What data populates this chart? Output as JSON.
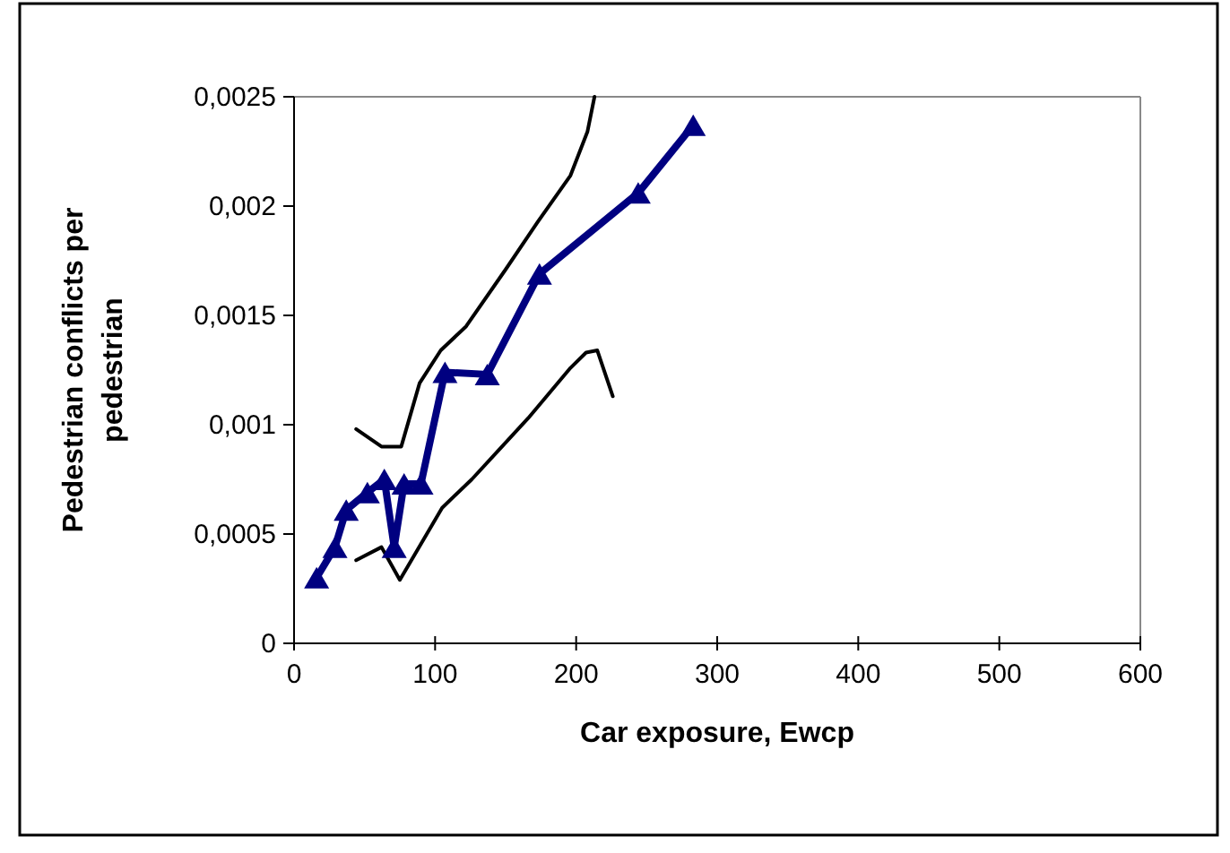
{
  "chart_data": {
    "type": "line",
    "xlabel": "Car exposure, Ewcp",
    "ylabel": "Pedestrian conflicts per pedestrian",
    "xlim": [
      0,
      600
    ],
    "xticks": [
      0,
      100,
      200,
      300,
      400,
      500,
      600
    ],
    "ylim": [
      0,
      0.0025
    ],
    "yticks": [
      {
        "value": 0,
        "label": "0"
      },
      {
        "value": 0.0005,
        "label": "0,0005"
      },
      {
        "value": 0.001,
        "label": "0,001"
      },
      {
        "value": 0.0015,
        "label": "0,0015"
      },
      {
        "value": 0.002,
        "label": "0,002"
      },
      {
        "value": 0.0025,
        "label": "0,0025"
      }
    ],
    "grid": false,
    "series": [
      {
        "color": "#000000",
        "marker": "none",
        "x": [
          44,
          62,
          76,
          89,
          104,
          122,
          150,
          173,
          196,
          208,
          213
        ],
        "values": [
          0.00098,
          0.0009,
          0.0009,
          0.00119,
          0.00134,
          0.00145,
          0.00171,
          0.00193,
          0.00214,
          0.00234,
          0.0025
        ]
      },
      {
        "color": "#000000",
        "marker": "none",
        "x": [
          44,
          62,
          75,
          105,
          126,
          166,
          196,
          207,
          215,
          226
        ],
        "values": [
          0.00038,
          0.00044,
          0.00029,
          0.00062,
          0.00075,
          0.00103,
          0.00126,
          0.00133,
          0.00134,
          0.00113
        ]
      },
      {
        "color": "#000080",
        "marker": "triangle",
        "x": [
          16,
          29,
          37,
          52,
          64,
          71,
          78,
          90,
          107,
          137,
          174,
          244,
          283
        ],
        "values": [
          0.0003,
          0.00044,
          0.00061,
          0.00069,
          0.00075,
          0.00044,
          0.00073,
          0.00073,
          0.00124,
          0.00123,
          0.00169,
          0.00206,
          0.00237
        ]
      }
    ]
  }
}
